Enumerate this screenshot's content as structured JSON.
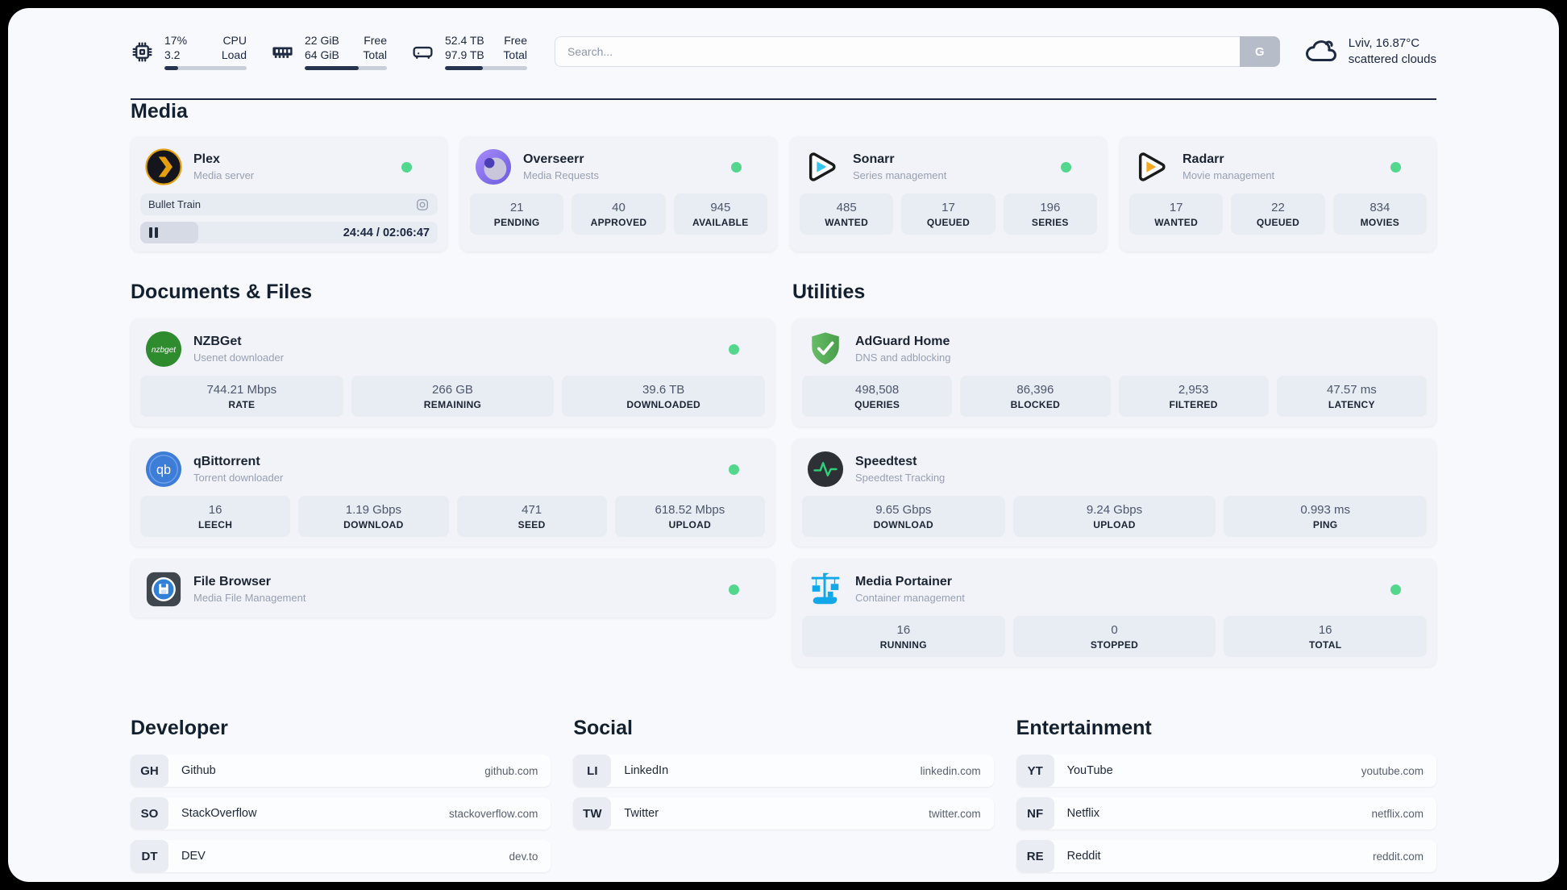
{
  "colors": {
    "status_online": "#52d78c",
    "panel_bg": "#f8f9fc",
    "card_bg": "#f1f3f8",
    "stat_bg": "#e8ecf3",
    "text_dark": "#1a2433"
  },
  "topbar": {
    "cpu": {
      "value_top": "17%",
      "value_bottom": "3.2",
      "label_top": "CPU",
      "label_bottom": "Load",
      "progress_pct": 17
    },
    "memory": {
      "value_top": "22 GiB",
      "value_bottom": "64 GiB",
      "label_top": "Free",
      "label_bottom": "Total",
      "progress_pct": 66
    },
    "disk": {
      "value_top": "52.4 TB",
      "value_bottom": "97.9 TB",
      "label_top": "Free",
      "label_bottom": "Total",
      "progress_pct": 46
    },
    "search": {
      "placeholder": "Search...",
      "button_label": "G"
    },
    "weather": {
      "location_temp": "Lviv, 16.87°C",
      "condition": "scattered clouds"
    }
  },
  "media": {
    "heading": "Media",
    "plex": {
      "title": "Plex",
      "subtitle": "Media server",
      "now_playing": "Bullet Train",
      "time": "24:44 / 02:06:47",
      "progress_pct": 19.5
    },
    "overseerr": {
      "title": "Overseerr",
      "subtitle": "Media Requests",
      "stats": [
        {
          "value": "21",
          "label": "PENDING"
        },
        {
          "value": "40",
          "label": "APPROVED"
        },
        {
          "value": "945",
          "label": "AVAILABLE"
        }
      ]
    },
    "sonarr": {
      "title": "Sonarr",
      "subtitle": "Series management",
      "stats": [
        {
          "value": "485",
          "label": "WANTED"
        },
        {
          "value": "17",
          "label": "QUEUED"
        },
        {
          "value": "196",
          "label": "SERIES"
        }
      ]
    },
    "radarr": {
      "title": "Radarr",
      "subtitle": "Movie management",
      "stats": [
        {
          "value": "17",
          "label": "WANTED"
        },
        {
          "value": "22",
          "label": "QUEUED"
        },
        {
          "value": "834",
          "label": "MOVIES"
        }
      ]
    }
  },
  "documents": {
    "heading": "Documents & Files",
    "nzbget": {
      "title": "NZBGet",
      "subtitle": "Usenet downloader",
      "icon_text": "nzbget",
      "stats": [
        {
          "value": "744.21 Mbps",
          "label": "RATE"
        },
        {
          "value": "266 GB",
          "label": "REMAINING"
        },
        {
          "value": "39.6 TB",
          "label": "DOWNLOADED"
        }
      ]
    },
    "qbittorrent": {
      "title": "qBittorrent",
      "subtitle": "Torrent downloader",
      "icon_text": "qb",
      "stats": [
        {
          "value": "16",
          "label": "LEECH"
        },
        {
          "value": "1.19 Gbps",
          "label": "DOWNLOAD"
        },
        {
          "value": "471",
          "label": "SEED"
        },
        {
          "value": "618.52 Mbps",
          "label": "UPLOAD"
        }
      ]
    },
    "filebrowser": {
      "title": "File Browser",
      "subtitle": "Media File Management"
    }
  },
  "utilities": {
    "heading": "Utilities",
    "adguard": {
      "title": "AdGuard Home",
      "subtitle": "DNS and adblocking",
      "stats": [
        {
          "value": "498,508",
          "label": "QUERIES"
        },
        {
          "value": "86,396",
          "label": "BLOCKED"
        },
        {
          "value": "2,953",
          "label": "FILTERED"
        },
        {
          "value": "47.57 ms",
          "label": "LATENCY"
        }
      ]
    },
    "speedtest": {
      "title": "Speedtest",
      "subtitle": "Speedtest Tracking",
      "stats": [
        {
          "value": "9.65 Gbps",
          "label": "DOWNLOAD"
        },
        {
          "value": "9.24 Gbps",
          "label": "UPLOAD"
        },
        {
          "value": "0.993 ms",
          "label": "PING"
        }
      ]
    },
    "portainer": {
      "title": "Media Portainer",
      "subtitle": "Container management",
      "stats": [
        {
          "value": "16",
          "label": "RUNNING"
        },
        {
          "value": "0",
          "label": "STOPPED"
        },
        {
          "value": "16",
          "label": "TOTAL"
        }
      ]
    }
  },
  "links": {
    "developer": {
      "heading": "Developer",
      "items": [
        {
          "abbr": "GH",
          "name": "Github",
          "url": "github.com"
        },
        {
          "abbr": "SO",
          "name": "StackOverflow",
          "url": "stackoverflow.com"
        },
        {
          "abbr": "DT",
          "name": "DEV",
          "url": "dev.to"
        }
      ]
    },
    "social": {
      "heading": "Social",
      "items": [
        {
          "abbr": "LI",
          "name": "LinkedIn",
          "url": "linkedin.com"
        },
        {
          "abbr": "TW",
          "name": "Twitter",
          "url": "twitter.com"
        }
      ]
    },
    "entertainment": {
      "heading": "Entertainment",
      "items": [
        {
          "abbr": "YT",
          "name": "YouTube",
          "url": "youtube.com"
        },
        {
          "abbr": "NF",
          "name": "Netflix",
          "url": "netflix.com"
        },
        {
          "abbr": "RE",
          "name": "Reddit",
          "url": "reddit.com"
        }
      ]
    }
  }
}
